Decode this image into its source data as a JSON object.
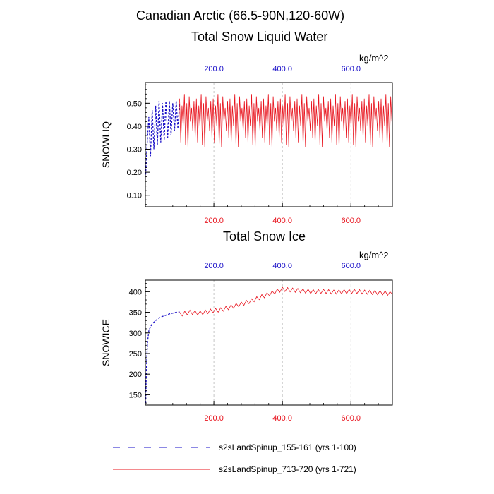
{
  "figure": {
    "title": "Canadian Arctic (66.5-90N,120-60W)"
  },
  "legend": [
    {
      "label": "s2sLandSpinup_155-161 (yrs 1-100)",
      "color": "#1a10c8",
      "style": "dashed"
    },
    {
      "label": "s2sLandSpinup_713-720 (yrs 1-721)",
      "color": "#e8141e",
      "style": "solid"
    }
  ],
  "chart_data": [
    {
      "type": "line",
      "title": "Total Snow Liquid Water",
      "units": "kg/m^2",
      "ylabel": "SNOWLIQ",
      "xlim": [
        0,
        721
      ],
      "ylim": [
        0.05,
        0.59
      ],
      "y_ticks": [
        0.1,
        0.2,
        0.3,
        0.4,
        0.5
      ],
      "y_tick_labels": [
        "0.10",
        "0.20",
        "0.30",
        "0.40",
        "0.50"
      ],
      "x_ticks": [
        200,
        400,
        600
      ],
      "x_tick_labels_bottom": [
        "200.0",
        "400.0",
        "600.0"
      ],
      "x_tick_labels_top": [
        "200.0",
        "400.0",
        "600.0"
      ],
      "x_grid": true,
      "series": [
        {
          "name": "s2sLandSpinup_155-161 (yrs 1-100)",
          "color": "#1a10c8",
          "style": "dashed",
          "x": [
            1,
            5,
            10,
            15,
            20,
            25,
            30,
            35,
            40,
            45,
            50,
            55,
            60,
            65,
            70,
            75,
            80,
            85,
            90,
            95,
            100
          ],
          "y": [
            0.19,
            0.32,
            0.44,
            0.27,
            0.47,
            0.3,
            0.49,
            0.32,
            0.51,
            0.33,
            0.5,
            0.34,
            0.51,
            0.35,
            0.51,
            0.36,
            0.5,
            0.38,
            0.51,
            0.39,
            0.5
          ]
        },
        {
          "name": "s2sLandSpinup_713-720 (yrs 1-721)",
          "color": "#e8141e",
          "style": "solid",
          "cycle_years": 7,
          "x_range": [
            100,
            721
          ],
          "cycle_max": [
            0.52,
            0.49,
            0.54,
            0.5,
            0.53,
            0.48,
            0.51
          ],
          "cycle_min": [
            0.33,
            0.38,
            0.31,
            0.4,
            0.35,
            0.42,
            0.32
          ]
        }
      ]
    },
    {
      "type": "line",
      "title": "Total Snow Ice",
      "units": "kg/m^2",
      "ylabel": "SNOWICE",
      "xlim": [
        0,
        721
      ],
      "ylim": [
        125,
        428
      ],
      "y_ticks": [
        150,
        200,
        250,
        300,
        350,
        400
      ],
      "y_tick_labels": [
        "150",
        "200",
        "250",
        "300",
        "350",
        "400"
      ],
      "x_ticks": [
        200,
        400,
        600
      ],
      "x_tick_labels_bottom": [
        "200.0",
        "400.0",
        "600.0"
      ],
      "x_tick_labels_top": [
        "200.0",
        "400.0",
        "600.0"
      ],
      "x_grid": true,
      "series": [
        {
          "name": "s2sLandSpinup_155-161 (yrs 1-100)",
          "color": "#1a10c8",
          "style": "dashed",
          "x": [
            1,
            3,
            6,
            10,
            15,
            20,
            30,
            40,
            50,
            60,
            70,
            80,
            90,
            100
          ],
          "y": [
            130,
            210,
            275,
            305,
            315,
            322,
            330,
            336,
            340,
            343,
            346,
            348,
            350,
            351
          ]
        },
        {
          "name": "s2sLandSpinup_713-720 (yrs 1-721)",
          "color": "#e8141e",
          "style": "solid",
          "x": [
            100,
            130,
            160,
            190,
            220,
            250,
            280,
            310,
            340,
            370,
            400,
            430,
            460,
            490,
            520,
            550,
            580,
            610,
            640,
            670,
            700,
            721
          ],
          "y": [
            345,
            350,
            348,
            353,
            356,
            363,
            370,
            378,
            388,
            397,
            406,
            404,
            402,
            400,
            401,
            399,
            400,
            401,
            399,
            398,
            397,
            394
          ],
          "oscillation": 5
        }
      ]
    }
  ]
}
